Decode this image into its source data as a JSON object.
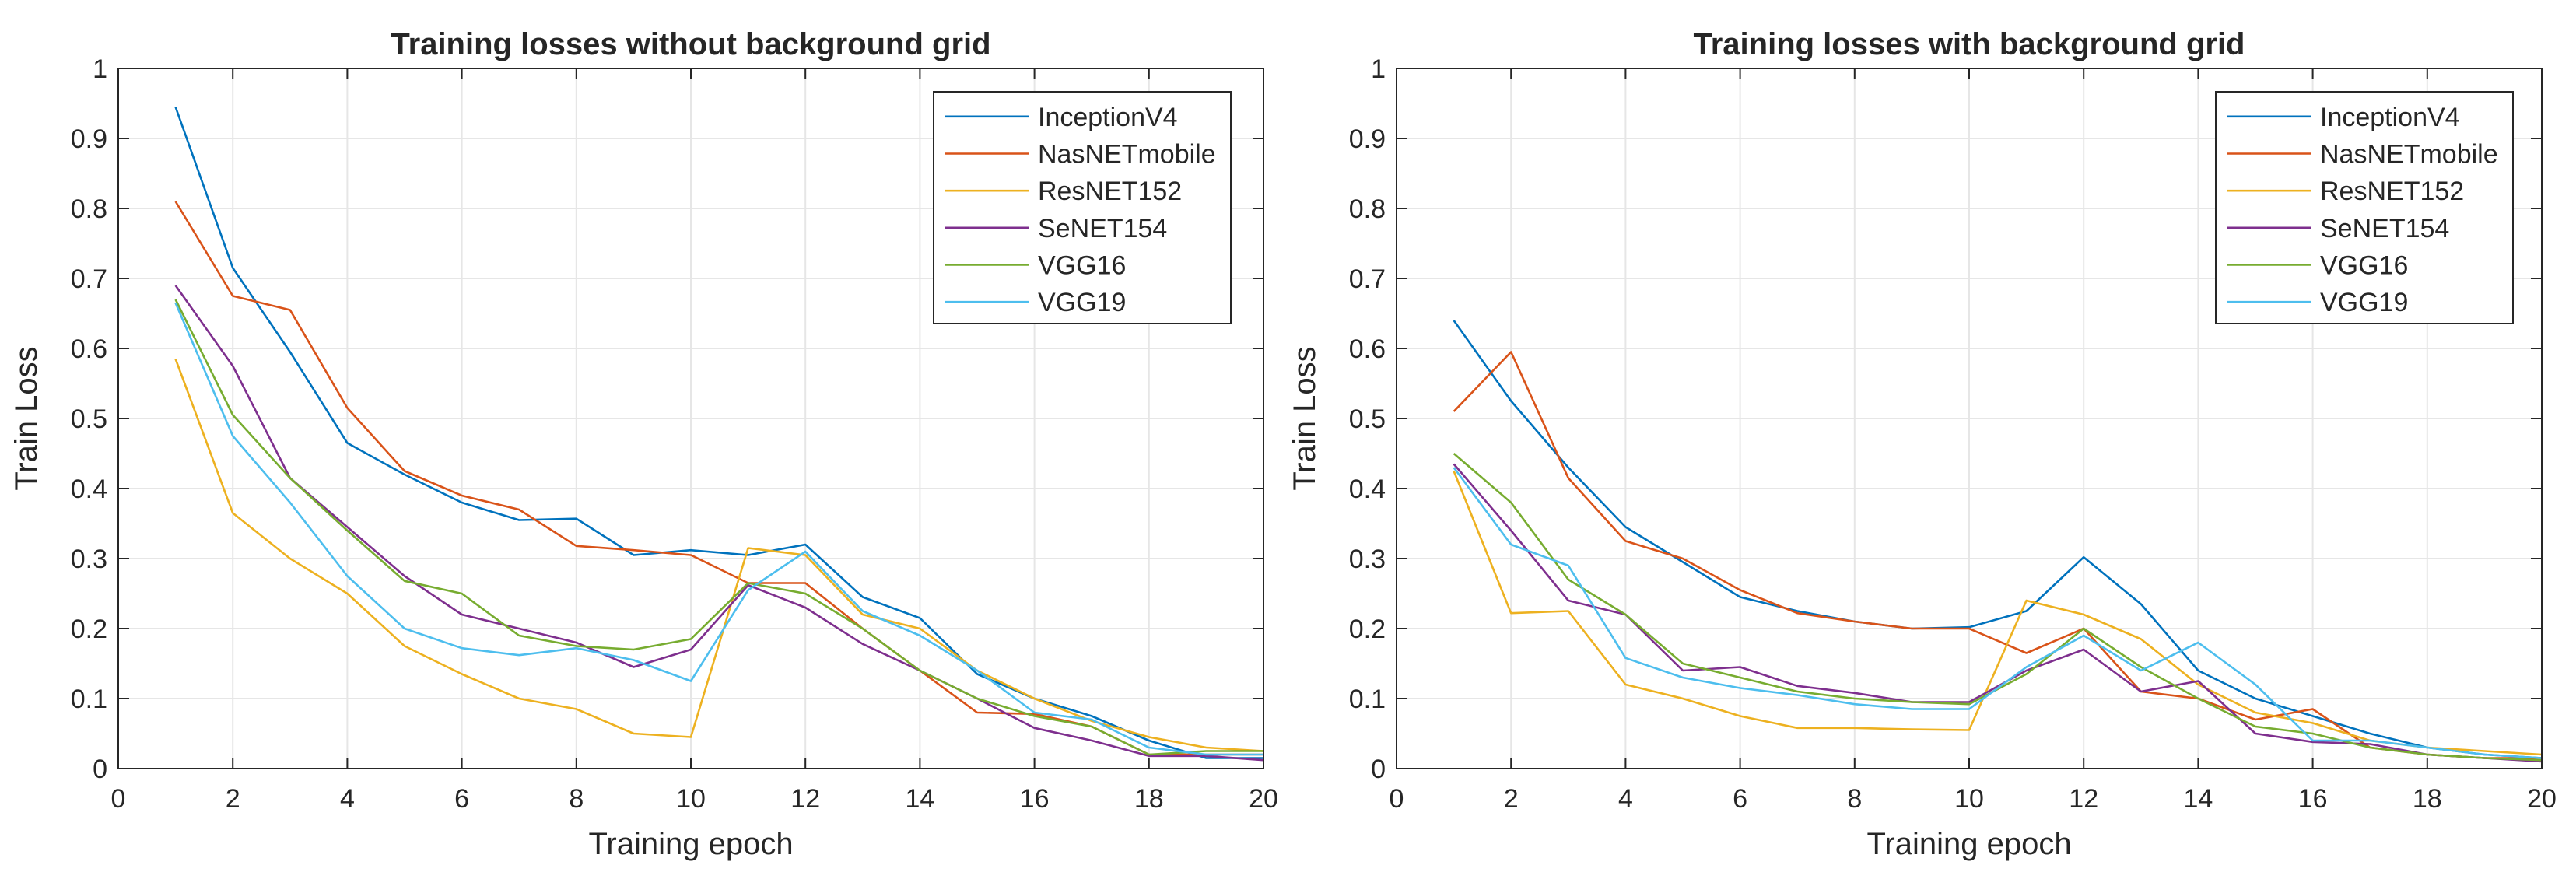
{
  "chart_data": [
    {
      "type": "line",
      "title": "Training losses without background grid",
      "xlabel": "Training epoch",
      "ylabel": "Train Loss",
      "xlim": [
        0,
        20
      ],
      "ylim": [
        0,
        1
      ],
      "xticks": [
        "0",
        "2",
        "4",
        "6",
        "8",
        "10",
        "12",
        "14",
        "16",
        "18",
        "20"
      ],
      "yticks": [
        "0",
        "0.1",
        "0.2",
        "0.3",
        "0.4",
        "0.5",
        "0.6",
        "0.7",
        "0.8",
        "0.9",
        "1"
      ],
      "grid": true,
      "legend_position": "top-right",
      "x": [
        1,
        2,
        3,
        4,
        5,
        6,
        7,
        8,
        9,
        10,
        11,
        12,
        13,
        14,
        15,
        16,
        17,
        18,
        19,
        20
      ],
      "series": [
        {
          "name": "InceptionV4",
          "color": "#0072BD",
          "values": [
            0.945,
            0.715,
            0.595,
            0.465,
            0.42,
            0.38,
            0.355,
            0.357,
            0.305,
            0.312,
            0.305,
            0.32,
            0.245,
            0.215,
            0.135,
            0.1,
            0.075,
            0.04,
            0.015,
            0.015
          ]
        },
        {
          "name": "NasNETmobile",
          "color": "#D95319",
          "values": [
            0.81,
            0.675,
            0.655,
            0.515,
            0.425,
            0.39,
            0.37,
            0.318,
            0.312,
            0.305,
            0.265,
            0.265,
            0.2,
            0.14,
            0.08,
            0.078,
            0.06,
            0.02,
            0.02,
            0.02
          ]
        },
        {
          "name": "ResNET152",
          "color": "#EDB120",
          "values": [
            0.585,
            0.365,
            0.3,
            0.25,
            0.175,
            0.135,
            0.1,
            0.085,
            0.05,
            0.045,
            0.315,
            0.305,
            0.22,
            0.2,
            0.14,
            0.1,
            0.068,
            0.045,
            0.03,
            0.025
          ]
        },
        {
          "name": "SeNET154",
          "color": "#7E2F8E",
          "values": [
            0.69,
            0.575,
            0.415,
            0.345,
            0.275,
            0.22,
            0.2,
            0.18,
            0.145,
            0.17,
            0.262,
            0.23,
            0.178,
            0.14,
            0.1,
            0.058,
            0.04,
            0.018,
            0.018,
            0.012
          ]
        },
        {
          "name": "VGG16",
          "color": "#77AC30",
          "values": [
            0.67,
            0.505,
            0.415,
            0.34,
            0.268,
            0.25,
            0.19,
            0.175,
            0.17,
            0.185,
            0.265,
            0.25,
            0.2,
            0.14,
            0.1,
            0.075,
            0.06,
            0.02,
            0.025,
            0.025
          ]
        },
        {
          "name": "VGG19",
          "color": "#4DBEEE",
          "values": [
            0.665,
            0.475,
            0.38,
            0.275,
            0.2,
            0.172,
            0.162,
            0.172,
            0.155,
            0.125,
            0.255,
            0.31,
            0.225,
            0.19,
            0.14,
            0.08,
            0.07,
            0.03,
            0.02,
            0.02
          ]
        }
      ]
    },
    {
      "type": "line",
      "title": "Training losses with background grid",
      "xlabel": "Training epoch",
      "ylabel": "Train Loss",
      "xlim": [
        0,
        20
      ],
      "ylim": [
        0,
        1
      ],
      "xticks": [
        "0",
        "2",
        "4",
        "6",
        "8",
        "10",
        "12",
        "14",
        "16",
        "18",
        "20"
      ],
      "yticks": [
        "0",
        "0.1",
        "0.2",
        "0.3",
        "0.4",
        "0.5",
        "0.6",
        "0.7",
        "0.8",
        "0.9",
        "1"
      ],
      "grid": true,
      "legend_position": "top-right",
      "x": [
        1,
        2,
        3,
        4,
        5,
        6,
        7,
        8,
        9,
        10,
        11,
        12,
        13,
        14,
        15,
        16,
        17,
        18,
        19,
        20
      ],
      "series": [
        {
          "name": "InceptionV4",
          "color": "#0072BD",
          "values": [
            0.64,
            0.525,
            0.43,
            0.345,
            0.295,
            0.245,
            0.225,
            0.21,
            0.2,
            0.202,
            0.225,
            0.302,
            0.235,
            0.14,
            0.1,
            0.075,
            0.05,
            0.03,
            0.02,
            0.015
          ]
        },
        {
          "name": "NasNETmobile",
          "color": "#D95319",
          "values": [
            0.51,
            0.595,
            0.415,
            0.325,
            0.3,
            0.255,
            0.222,
            0.21,
            0.2,
            0.2,
            0.165,
            0.2,
            0.11,
            0.1,
            0.07,
            0.085,
            0.03,
            0.02,
            0.015,
            0.015
          ]
        },
        {
          "name": "ResNET152",
          "color": "#EDB120",
          "values": [
            0.425,
            0.222,
            0.225,
            0.12,
            0.1,
            0.075,
            0.058,
            0.058,
            0.056,
            0.055,
            0.24,
            0.22,
            0.185,
            0.12,
            0.08,
            0.065,
            0.04,
            0.03,
            0.025,
            0.02
          ]
        },
        {
          "name": "SeNET154",
          "color": "#7E2F8E",
          "values": [
            0.435,
            0.34,
            0.24,
            0.22,
            0.14,
            0.145,
            0.118,
            0.108,
            0.095,
            0.095,
            0.14,
            0.17,
            0.11,
            0.125,
            0.05,
            0.038,
            0.035,
            0.02,
            0.015,
            0.01
          ]
        },
        {
          "name": "VGG16",
          "color": "#77AC30",
          "values": [
            0.45,
            0.38,
            0.27,
            0.22,
            0.15,
            0.13,
            0.11,
            0.1,
            0.095,
            0.092,
            0.135,
            0.2,
            0.145,
            0.1,
            0.06,
            0.05,
            0.03,
            0.02,
            0.015,
            0.012
          ]
        },
        {
          "name": "VGG19",
          "color": "#4DBEEE",
          "values": [
            0.43,
            0.32,
            0.29,
            0.158,
            0.13,
            0.115,
            0.105,
            0.092,
            0.085,
            0.085,
            0.145,
            0.19,
            0.14,
            0.18,
            0.12,
            0.04,
            0.04,
            0.03,
            0.02,
            0.015
          ]
        }
      ]
    }
  ]
}
